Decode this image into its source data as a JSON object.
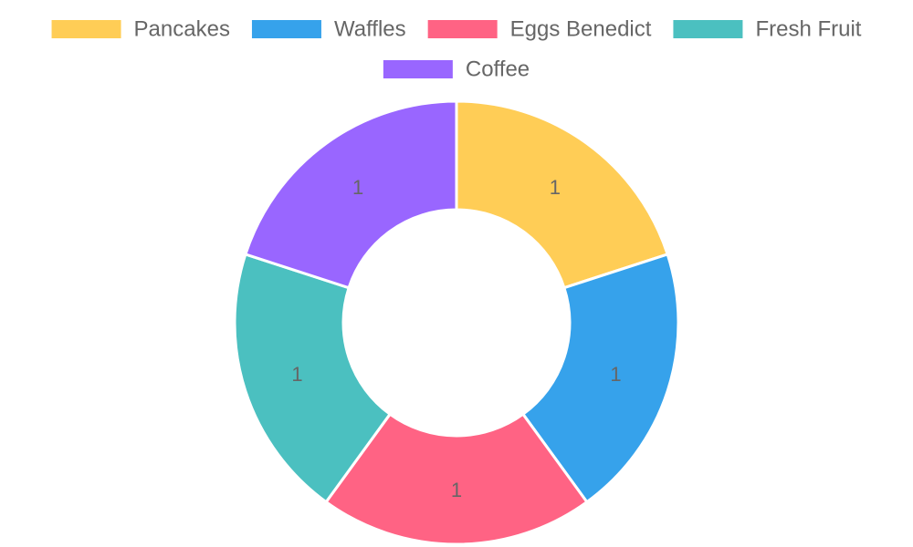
{
  "chart_data": {
    "type": "pie",
    "variant": "doughnut",
    "categories": [
      "Pancakes",
      "Waffles",
      "Eggs Benedict",
      "Fresh Fruit",
      "Coffee"
    ],
    "values": [
      1,
      1,
      1,
      1,
      1
    ],
    "data_labels": [
      "1",
      "1",
      "1",
      "1",
      "1"
    ],
    "colors": [
      "#FFCD56",
      "#36A2EB",
      "#FF6384",
      "#4BC0C0",
      "#9966FF"
    ],
    "legend_position": "top"
  }
}
